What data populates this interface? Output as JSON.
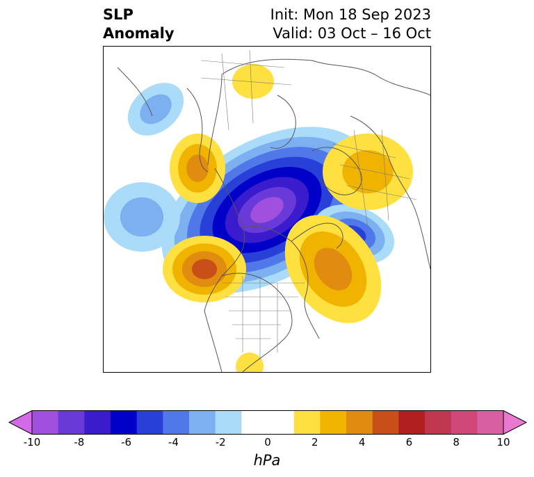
{
  "header": {
    "title_line1": "SLP",
    "title_line2": "Anomaly",
    "init_text": "Init: Mon 18 Sep 2023",
    "valid_text": "Valid: 03 Oct – 16 Oct"
  },
  "map": {
    "variable": "SLP Anomaly",
    "projection": "north-polar-stereographic"
  },
  "colorbar": {
    "unit": "hPa",
    "ticks": [
      "-10",
      "-8",
      "-6",
      "-4",
      "-2",
      "0",
      "2",
      "4",
      "6",
      "8",
      "10"
    ],
    "colors": [
      "#d56ae8",
      "#a050dc",
      "#6a3ad8",
      "#3a1ccc",
      "#0000c8",
      "#2840d8",
      "#5078e8",
      "#7cb0f0",
      "#aadcfa",
      "#ffffff",
      "#ffffff",
      "#fee040",
      "#f0b400",
      "#e08c10",
      "#c85018",
      "#b02020",
      "#c03850",
      "#d04878",
      "#d860a0",
      "#e878d0"
    ]
  },
  "anomaly_colors": {
    "neg1": "#aadcfa",
    "neg2": "#7cb0f0",
    "neg3": "#5078e8",
    "neg4": "#2840d8",
    "neg5": "#0000c8",
    "neg6": "#3a1ccc",
    "neg7": "#6a3ad8",
    "neg8": "#a050dc",
    "pos1": "#fee040",
    "pos2": "#f0b400",
    "pos3": "#e08c10",
    "pos4": "#c85018"
  }
}
